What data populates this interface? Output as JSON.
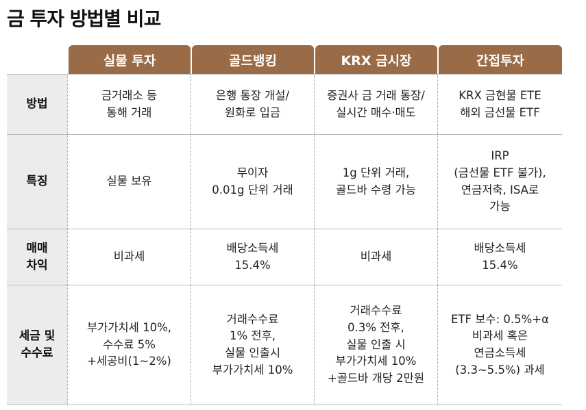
{
  "title": "금 투자 방법별 비교",
  "columns": [
    "실물 투자",
    "골드뱅킹",
    "KRX 금시장",
    "간접투자"
  ],
  "rows": [
    {
      "label": "방법",
      "cells": [
        "금거래소 등\n통해 거래",
        "은행 통장 개설/\n원화로 입금",
        "증권사 금 거래 통장/\n실시간 매수·매도",
        "KRX 금현물 ETE\n해외 금선물 ETF"
      ]
    },
    {
      "label": "특징",
      "cells": [
        "실물 보유",
        "무이자\n0.01g 단위 거래",
        "1g 단위 거래,\n골드바 수령 가능",
        "IRP\n(금선물 ETF 불가),\n연금저축, ISA로\n가능"
      ]
    },
    {
      "label": "매매\n차익",
      "cells": [
        "비과세",
        "배당소득세\n15.4%",
        "비과세",
        "배당소득세\n15.4%"
      ]
    },
    {
      "label": "세금 및\n수수료",
      "cells": [
        "부가가치세 10%,\n수수료 5%\n+세공비(1~2%)",
        "거래수수료\n1% 전후,\n실물 인출시\n부가가치세 10%",
        "거래수수료\n0.3% 전후,\n실물 인출 시\n부가가치세 10%\n+골드바 개당 2만원",
        "ETF 보수: 0.5%+α\n비과세 혹은\n연금소득세\n(3.3~5.5%) 과세"
      ]
    }
  ]
}
